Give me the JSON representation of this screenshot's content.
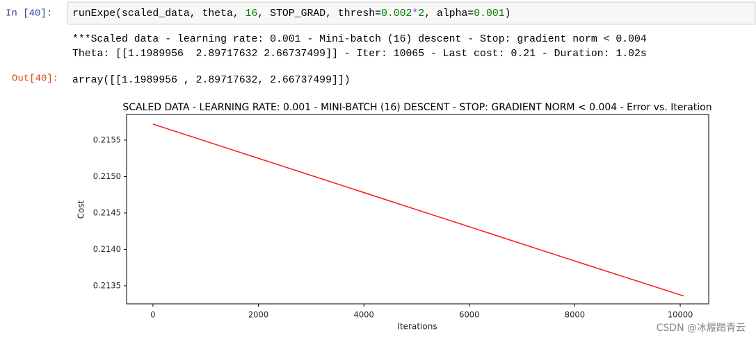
{
  "input_prompt": "In [40]:",
  "code": [
    "runExpe(scaled_data, theta, ",
    "16",
    ", STOP_GRAD, thresh=",
    "0.002",
    "*",
    "2",
    ", alpha=",
    "0.001",
    ")"
  ],
  "stdout": [
    "***Scaled data - learning rate: 0.001 - Mini-batch (16) descent - Stop: gradient norm < 0.004",
    "Theta: [[1.1989956  2.89717632 2.66737499]] - Iter: 10065 - Last cost: 0.21 - Duration: 1.02s"
  ],
  "output_prompt": "Out[40]:",
  "output": "array([[1.1989956 , 2.89717632, 2.66737499]])",
  "watermark": "CSDN @冰履踏青云",
  "chart_data": {
    "type": "line",
    "title": "SCALED DATA - LEARNING RATE: 0.001 - MINI-BATCH (16) DESCENT - STOP: GRADIENT NORM < 0.004 - Error vs. Iteration",
    "xlabel": "Iterations",
    "ylabel": "Cost",
    "x": [
      0,
      2000,
      4000,
      6000,
      8000,
      10065
    ],
    "series": [
      {
        "name": "Cost",
        "color": "#ff1f1f",
        "values": [
          0.21572,
          0.21525,
          0.21478,
          0.21431,
          0.21384,
          0.21336
        ]
      }
    ],
    "xlim": [
      -500,
      10540
    ],
    "xticks": [
      0,
      2000,
      4000,
      6000,
      8000,
      10000
    ],
    "ylim": [
      0.213252,
      0.215852
    ],
    "yticks": [
      0.2135,
      {
        "value": 0.214,
        "label": "0.2140"
      },
      0.2145,
      {
        "value": 0.215,
        "label": "0.2150"
      },
      0.2155
    ],
    "grid": false
  }
}
